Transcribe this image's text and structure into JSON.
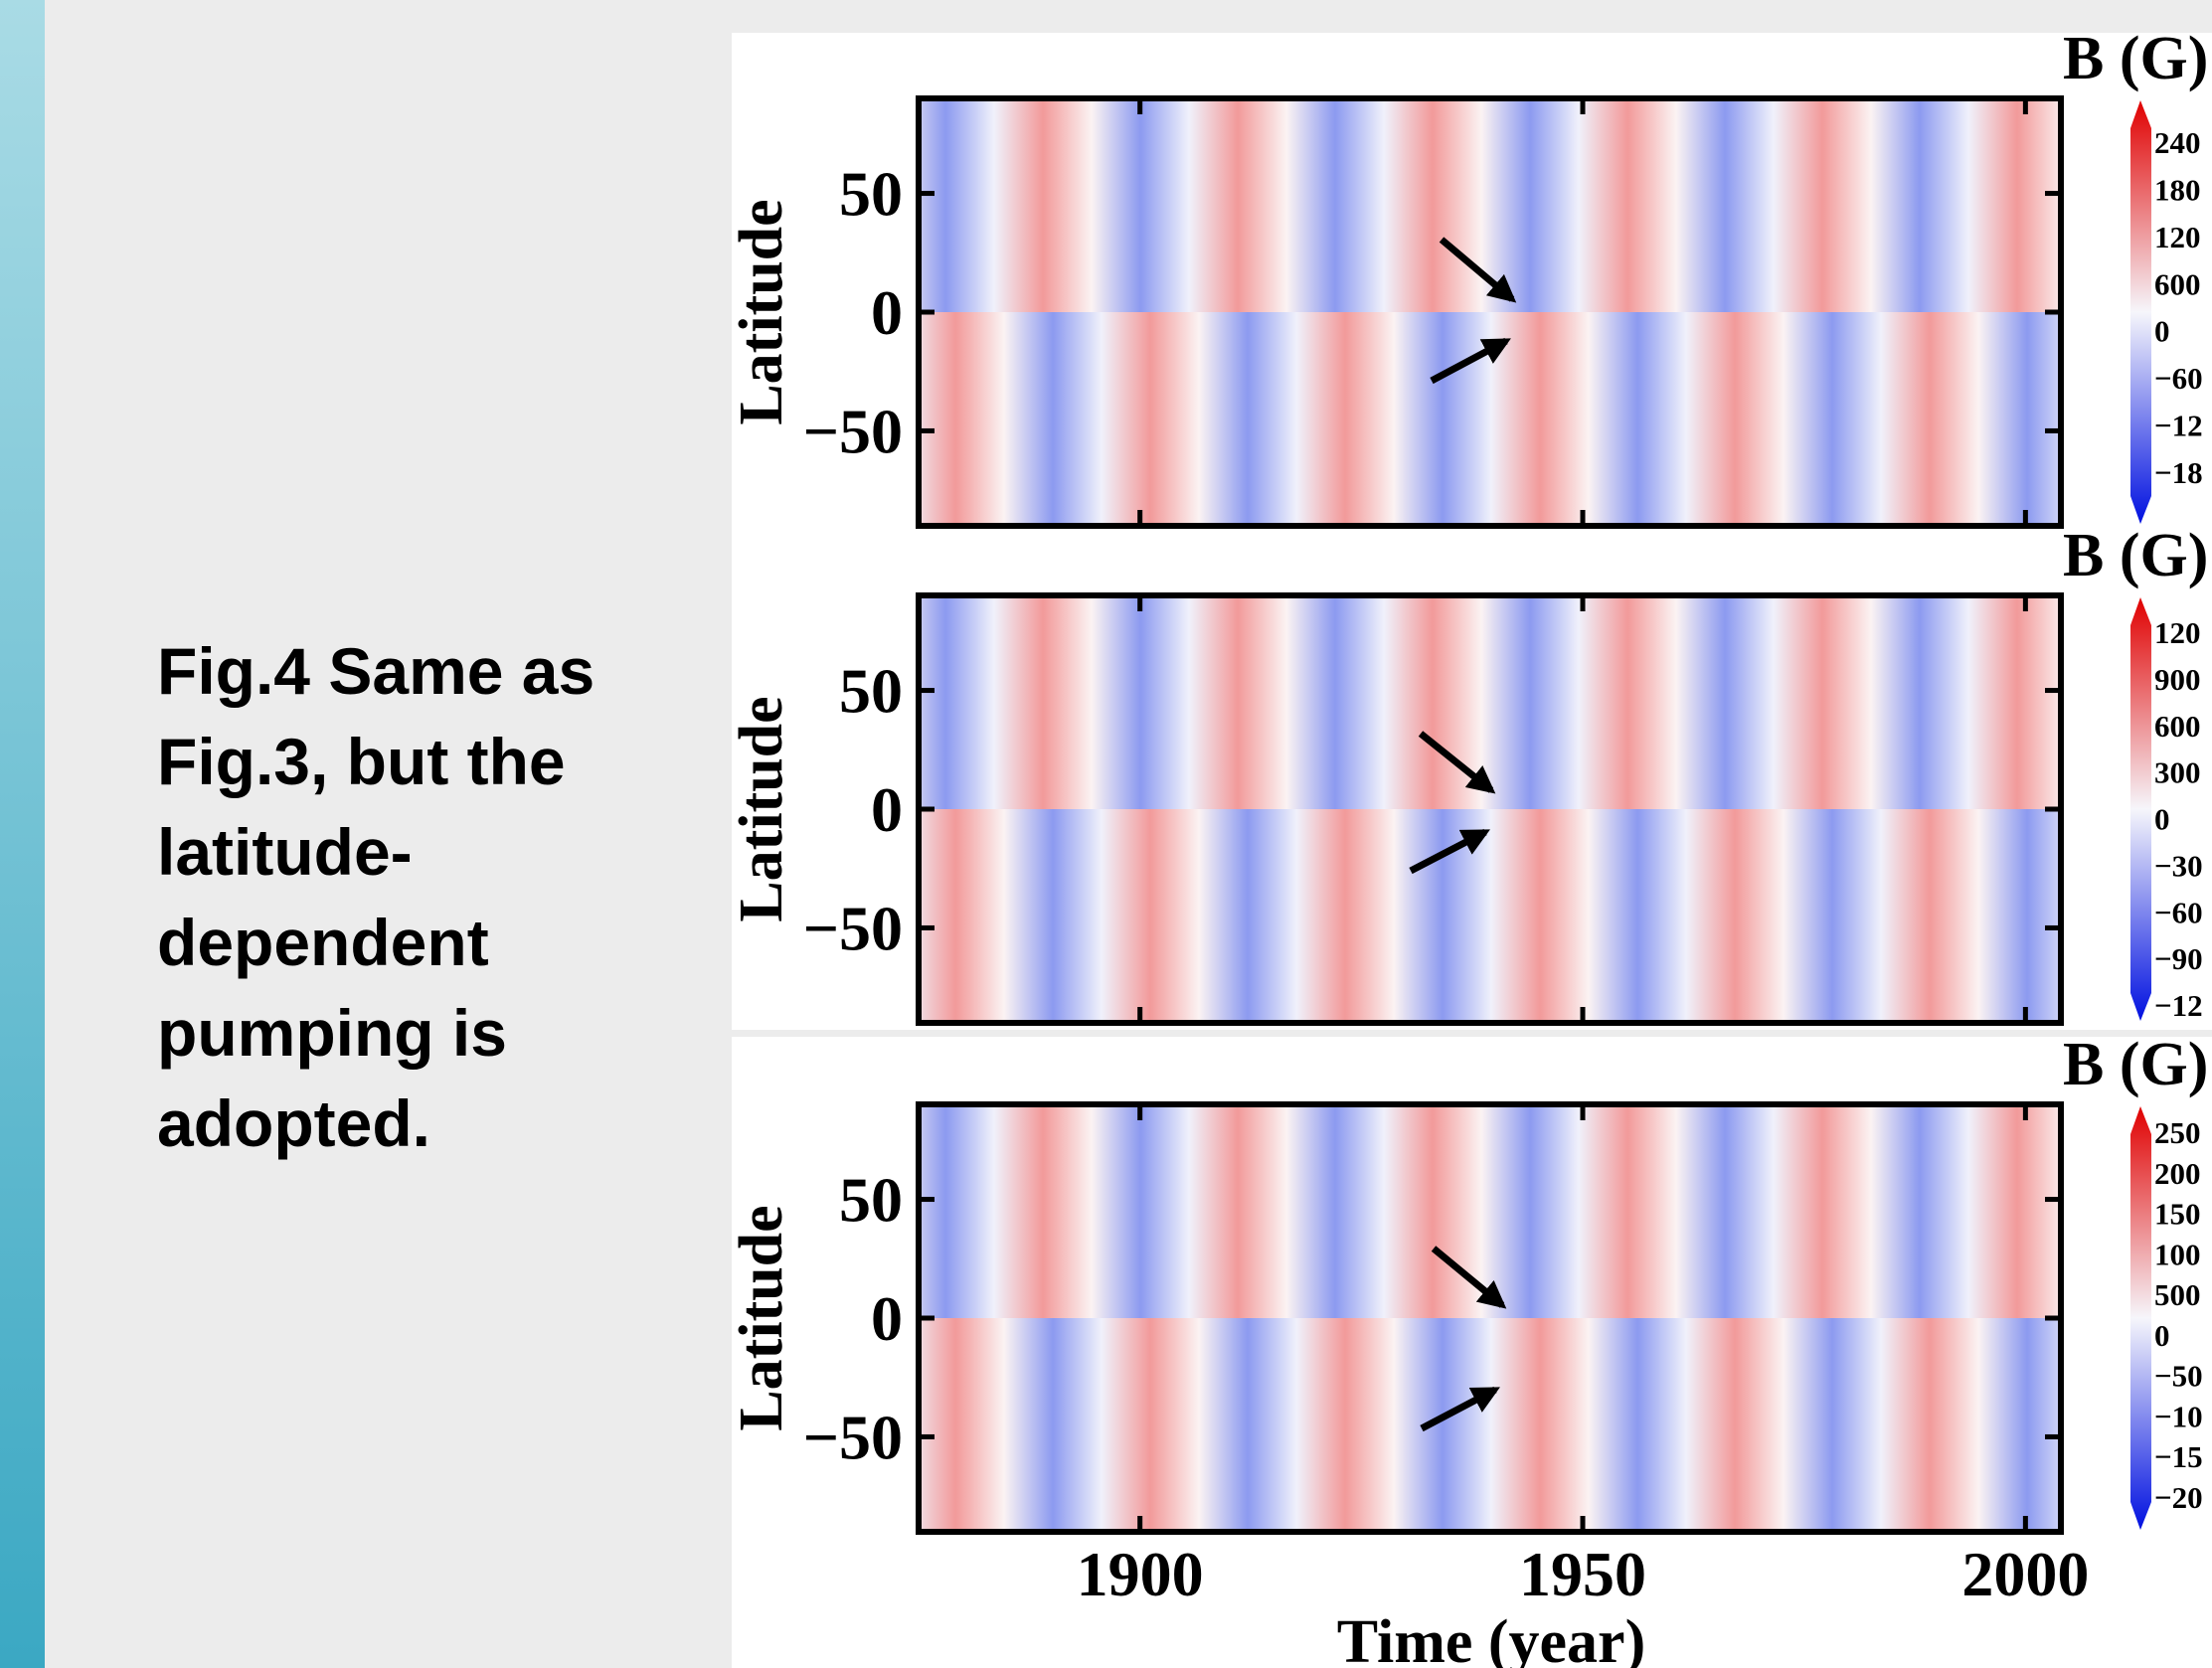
{
  "caption": "Fig.4 Same as Fig.3, but the latitude-dependent pumping is adopted.",
  "figure": {
    "ylabel": "Latitude",
    "xlabel": "Time (year)",
    "xlim": [
      1875,
      2004
    ],
    "xticks": [
      1900,
      1950,
      2000
    ],
    "ylim": [
      -90,
      90
    ],
    "yticks": [
      50,
      0,
      {
        "value": -50,
        "label": "−50"
      }
    ],
    "panels": [
      {
        "colorbar_title": "B (G)",
        "colorbar_labels": [
          "240",
          "180",
          "120",
          "600",
          "0",
          "−60",
          "−12",
          "−18"
        ]
      },
      {
        "colorbar_title": "B (G)",
        "colorbar_labels": [
          "120",
          "900",
          "600",
          "300",
          "0",
          "−30",
          "−60",
          "−90",
          "−12"
        ]
      },
      {
        "colorbar_title": "B (G)",
        "colorbar_labels": [
          "250",
          "200",
          "150",
          "100",
          "500",
          "0",
          "−50",
          "−10",
          "−15",
          "−20"
        ]
      }
    ]
  }
}
